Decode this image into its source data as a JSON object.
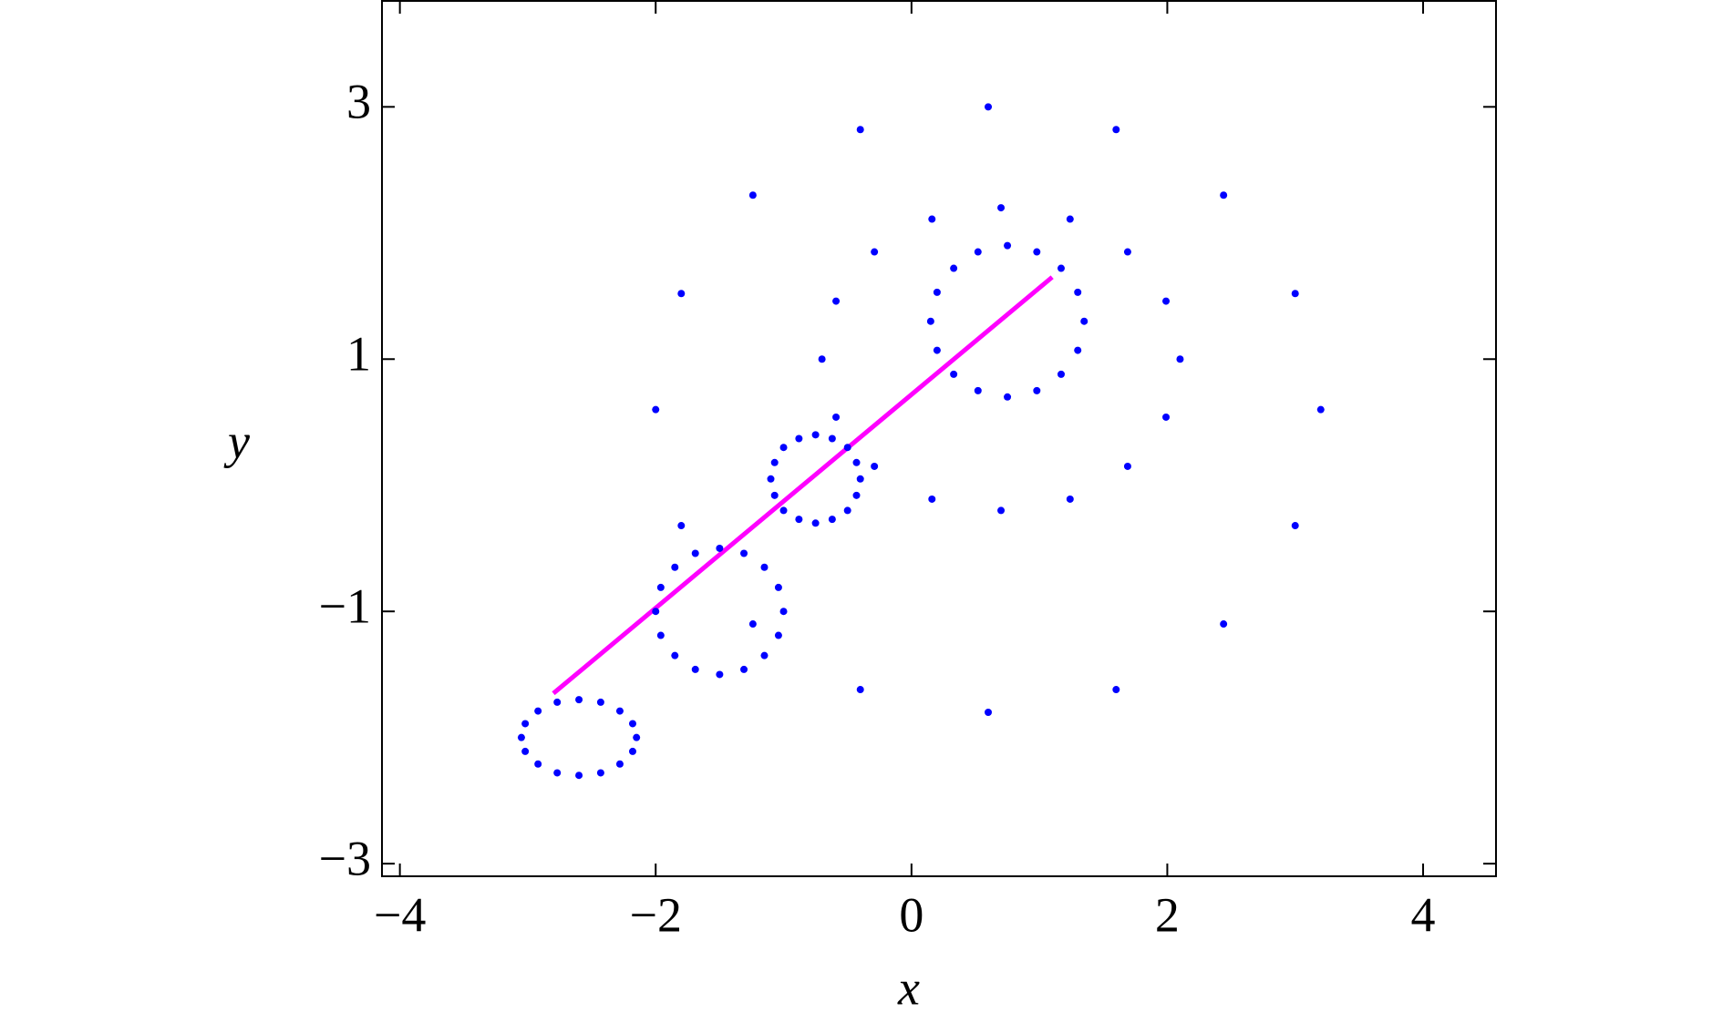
{
  "chart_data": {
    "type": "scatter",
    "xlabel": "x",
    "ylabel": "y",
    "xlim": [
      -4.14,
      4.57
    ],
    "ylim": [
      -3.1,
      3.84
    ],
    "xticks": [
      {
        "value": -4,
        "label": "−4"
      },
      {
        "value": -2,
        "label": "−2"
      },
      0,
      2,
      4
    ],
    "yticks": [
      {
        "value": -3,
        "label": "−3"
      },
      {
        "value": -1,
        "label": "−1"
      },
      1,
      3
    ],
    "slit": {
      "color": "#ff00ff",
      "x": [
        -2.8,
        1.1
      ],
      "y": [
        -1.65,
        1.65
      ]
    },
    "series": [
      {
        "color": "#0000ff",
        "x": [
          1.35,
          1.3,
          1.17,
          0.98,
          0.75,
          0.52,
          0.33,
          0.2,
          0.15,
          0.2,
          0.33,
          0.52,
          0.75,
          0.98,
          1.17,
          1.3
        ],
        "y": [
          1.3,
          1.53,
          1.72,
          1.85,
          1.9,
          1.85,
          1.72,
          1.53,
          1.3,
          1.07,
          0.88,
          0.75,
          0.7,
          0.75,
          0.88,
          1.07
        ]
      },
      {
        "color": "#0000ff",
        "x": [
          2.1,
          1.99,
          1.69,
          1.24,
          0.7,
          0.16,
          -0.29,
          -0.59,
          -0.7,
          -0.59,
          -0.29,
          0.16,
          0.7,
          1.24,
          1.69,
          1.99
        ],
        "y": [
          1.0,
          1.46,
          1.85,
          2.11,
          2.2,
          2.11,
          1.85,
          1.46,
          1.0,
          0.54,
          0.15,
          -0.11,
          -0.2,
          -0.11,
          0.15,
          0.54
        ]
      },
      {
        "color": "#0000ff",
        "x": [
          3.2,
          3.0,
          2.44,
          1.6,
          0.6,
          -0.4,
          -1.24,
          -1.8,
          -2.0,
          -1.8,
          -1.24,
          -0.4,
          0.6,
          1.6,
          2.44,
          3.0
        ],
        "y": [
          0.6,
          1.52,
          2.3,
          2.82,
          3.0,
          2.82,
          2.3,
          1.52,
          0.6,
          -0.32,
          -1.1,
          -1.62,
          -1.8,
          -1.62,
          -1.1,
          -0.32
        ]
      },
      {
        "color": "#0000ff",
        "x": [
          -0.4,
          -0.43,
          -0.5,
          -0.62,
          -0.75,
          -0.88,
          -1.0,
          -1.07,
          -1.1,
          -1.07,
          -1.0,
          -0.88,
          -0.75,
          -0.62,
          -0.5,
          -0.43
        ],
        "y": [
          0.05,
          0.18,
          0.3,
          0.37,
          0.4,
          0.37,
          0.3,
          0.18,
          0.05,
          -0.08,
          -0.2,
          -0.27,
          -0.3,
          -0.27,
          -0.2,
          -0.08
        ]
      },
      {
        "color": "#0000ff",
        "x": [
          -1.0,
          -1.04,
          -1.15,
          -1.31,
          -1.5,
          -1.69,
          -1.85,
          -1.96,
          -2.0,
          -1.96,
          -1.85,
          -1.69,
          -1.5,
          -1.31,
          -1.15,
          -1.04
        ],
        "y": [
          -1.0,
          -0.81,
          -0.65,
          -0.54,
          -0.5,
          -0.54,
          -0.65,
          -0.81,
          -1.0,
          -1.19,
          -1.35,
          -1.46,
          -1.5,
          -1.46,
          -1.35,
          -1.19
        ]
      },
      {
        "color": "#0000ff",
        "x": [
          -2.15,
          -2.18,
          -2.28,
          -2.43,
          -2.6,
          -2.77,
          -2.92,
          -3.02,
          -3.05,
          -3.02,
          -2.92,
          -2.77,
          -2.6,
          -2.43,
          -2.28,
          -2.18
        ],
        "y": [
          -2.0,
          -1.89,
          -1.79,
          -1.72,
          -1.7,
          -1.72,
          -1.79,
          -1.89,
          -2.0,
          -2.11,
          -2.21,
          -2.28,
          -2.3,
          -2.28,
          -2.21,
          -2.11
        ]
      }
    ]
  }
}
